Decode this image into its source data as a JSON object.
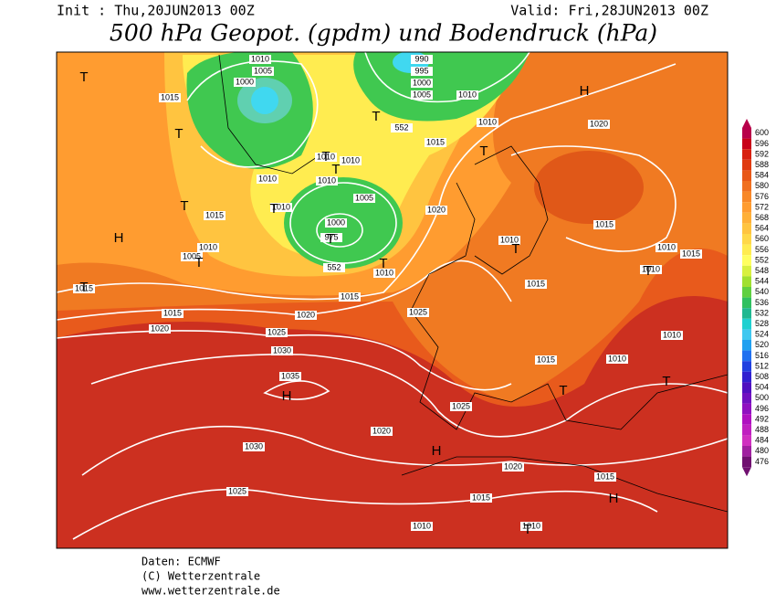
{
  "header": {
    "init": "Init : Thu,20JUN2013 00Z",
    "valid": "Valid: Fri,28JUN2013 00Z",
    "title": "500 hPa Geopot. (gpdm) und Bodendruck (hPa)"
  },
  "isobar_labels": [
    1010,
    1005,
    1000,
    990,
    995,
    1000,
    1005,
    1010,
    1010,
    1015,
    552,
    1015,
    1020,
    1010,
    1010,
    1010,
    1010,
    1005,
    1000,
    975,
    1010,
    1015,
    1020,
    1010,
    1005,
    552,
    1010,
    1015,
    1015,
    1015,
    1010,
    1010,
    1015,
    1010,
    1015,
    1015,
    1020,
    1025,
    1020,
    1025,
    1030,
    1035,
    1010,
    1015,
    1010,
    1025,
    1020,
    1030,
    1020,
    1015,
    1025,
    1015,
    1010,
    1010
  ],
  "pressure_centers": [
    "T",
    "T",
    "H",
    "T",
    "T",
    "T",
    "T",
    "T",
    "T",
    "H",
    "T",
    "T",
    "T",
    "T",
    "T",
    "T",
    "H",
    "T",
    "T",
    "H",
    "H",
    "T"
  ],
  "legend": {
    "values": [
      600,
      596,
      592,
      588,
      584,
      580,
      576,
      572,
      568,
      564,
      560,
      556,
      552,
      548,
      544,
      540,
      536,
      532,
      528,
      524,
      520,
      516,
      512,
      508,
      504,
      500,
      496,
      492,
      488,
      484,
      480,
      476
    ],
    "colors": [
      "#b8004a",
      "#c80018",
      "#d82010",
      "#e03a10",
      "#e85818",
      "#f07020",
      "#f88828",
      "#ff9c30",
      "#ffb038",
      "#ffc440",
      "#ffd848",
      "#ffec50",
      "#ffff60",
      "#d8f040",
      "#a0e030",
      "#60d040",
      "#30c060",
      "#20b890",
      "#20d0d0",
      "#40c8f0",
      "#20a0f0",
      "#2070f0",
      "#2040e0",
      "#3020d0",
      "#5010c0",
      "#7010c0",
      "#9010c0",
      "#b010c0",
      "#c020c0",
      "#d030c0",
      "#a020a0",
      "#701070"
    ]
  },
  "footer": {
    "line1": "Daten: ECMWF",
    "line2": "(C) Wetterzentrale",
    "line3": "www.wetterzentrale.de"
  }
}
